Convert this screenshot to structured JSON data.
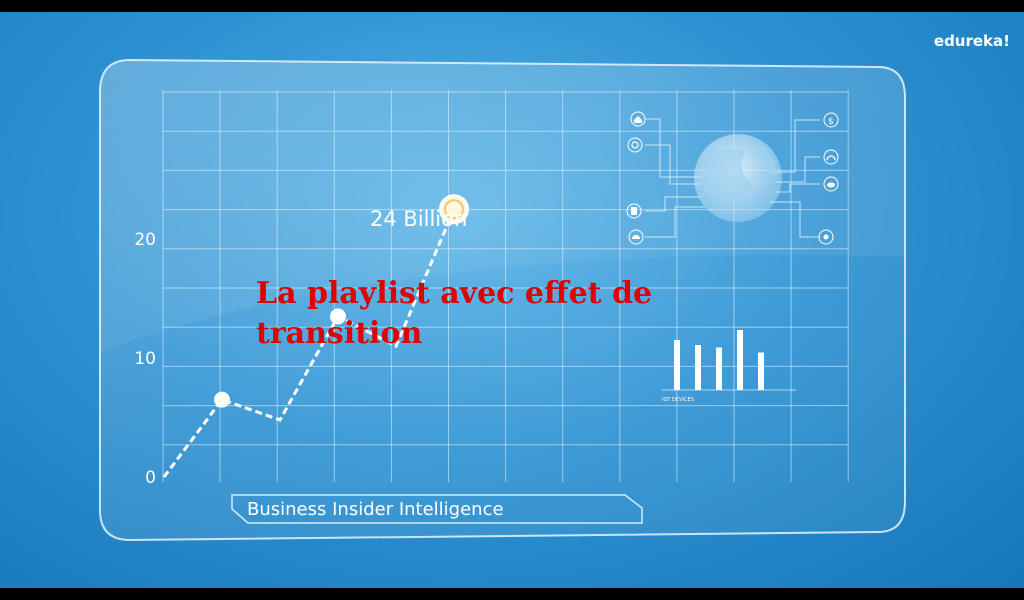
{
  "brand": "edureka!",
  "overlay_text": "La playlist avec effet de transition",
  "chart_data": {
    "type": "line",
    "x": [
      0,
      1,
      2,
      3,
      4,
      5
    ],
    "values": [
      0,
      6.5,
      4.8,
      13.5,
      11,
      22.5
    ],
    "ylim": [
      0,
      30
    ],
    "yticks": [
      "0",
      "10",
      "20"
    ],
    "annotation": "24 Billion",
    "source": "Business Insider Intelligence",
    "grid": true
  },
  "iot_chart": {
    "label": "IOT DEVICES",
    "values": [
      10,
      9,
      8.5,
      12,
      7.5
    ]
  },
  "icons": [
    "home-icon",
    "refresh-icon",
    "document-icon",
    "gauge-icon",
    "dollar-icon",
    "headphones-icon",
    "cloud-icon",
    "settings-icon",
    "globe-icon"
  ]
}
